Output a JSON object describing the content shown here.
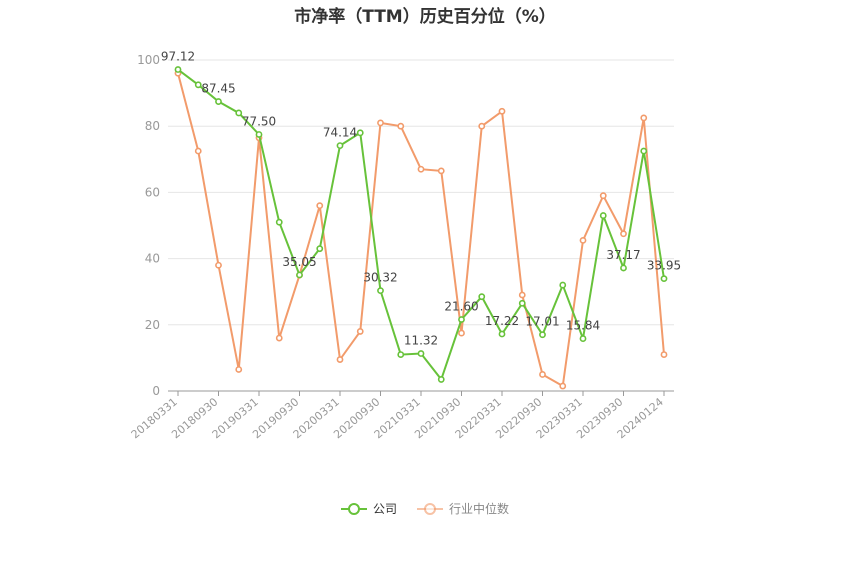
{
  "title": "市净率（TTM）历史百分位（%）",
  "chart_data": {
    "type": "line",
    "ylim": [
      0,
      100
    ],
    "yticks": [
      "0",
      "20",
      "40",
      "60",
      "80",
      "100"
    ],
    "xtick_labels": [
      "20180331",
      "20180930",
      "20190331",
      "20190930",
      "20200331",
      "20200930",
      "20210331",
      "20210930",
      "20220331",
      "20220930",
      "20230331",
      "20230930",
      "20240124"
    ],
    "grid": true,
    "legend_position": "bottom",
    "series": [
      {
        "name": "公司",
        "color": "#67c23a",
        "values": [
          97.12,
          92.5,
          87.45,
          84.0,
          77.5,
          51.0,
          35.05,
          43.0,
          74.14,
          78.0,
          30.32,
          11.0,
          11.32,
          3.5,
          21.6,
          28.5,
          17.22,
          26.5,
          17.01,
          32.0,
          15.84,
          53.0,
          37.17,
          72.5,
          33.95
        ],
        "labels": {
          "0": "97.12",
          "2": "87.45",
          "4": "77.50",
          "6": "35.05",
          "8": "74.14",
          "10": "30.32",
          "12": "11.32",
          "14": "21.60",
          "16": "17.22",
          "18": "17.01",
          "20": "15.84",
          "22": "37.17",
          "24": "33.95"
        }
      },
      {
        "name": "行业中位数",
        "color": "#f29b6b",
        "values": [
          96.0,
          72.5,
          38.0,
          6.5,
          76.5,
          16.0,
          35.0,
          56.0,
          9.5,
          18.0,
          81.0,
          80.0,
          67.0,
          66.5,
          17.5,
          80.0,
          84.5,
          29.0,
          5.0,
          1.5,
          45.5,
          59.0,
          47.5,
          82.5,
          11.0
        ]
      }
    ]
  }
}
